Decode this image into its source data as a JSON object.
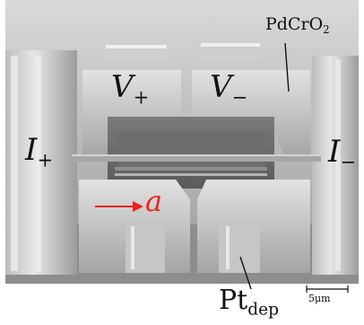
{
  "labels": {
    "pdcro2_main": "PdCrO",
    "pdcro2_sub": "2",
    "vplus_main": "V",
    "vplus_sub": "+",
    "vminus_main": "V",
    "vminus_sub": "−",
    "iplus_main": "I",
    "iplus_sub": "+",
    "iminus_main": "I",
    "iminus_sub": "−",
    "axis_a": "a",
    "pt_main": "Pt",
    "pt_sub": "dep",
    "scale_bar": "5μm"
  },
  "colors": {
    "annotation_red": "#e8231c",
    "text": "#111111"
  }
}
